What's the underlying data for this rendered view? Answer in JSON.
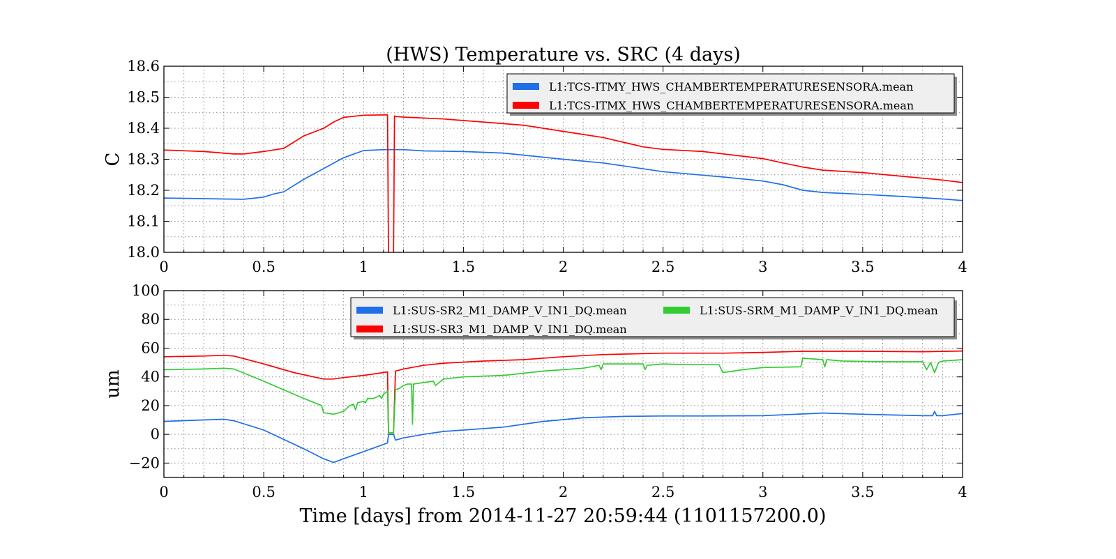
{
  "figure_xlabel": "Time [days] from 2014-11-27 20:59:44 (1101157200.0)",
  "colors": {
    "blue": "#1f6fe8",
    "red": "#ff0000",
    "green": "#33cc33"
  },
  "chart_data": [
    {
      "type": "line",
      "title": "(HWS) Temperature vs. SRC (4 days)",
      "xlabel": "",
      "ylabel": "C",
      "xlim": [
        0,
        4
      ],
      "ylim": [
        18.0,
        18.6
      ],
      "xticks": [
        0,
        0.5,
        1,
        1.5,
        2,
        2.5,
        3,
        3.5,
        4
      ],
      "xticklabels": [
        "0",
        "0.5",
        "1",
        "1.5",
        "2",
        "2.5",
        "3",
        "3.5",
        "4"
      ],
      "yticks": [
        18.0,
        18.1,
        18.2,
        18.3,
        18.4,
        18.5,
        18.6
      ],
      "yticklabels": [
        "18.0",
        "18.1",
        "18.2",
        "18.3",
        "18.4",
        "18.5",
        "18.6"
      ],
      "grid": true,
      "legend_position": "top-right",
      "series": [
        {
          "name": "L1:TCS-ITMY_HWS_CHAMBERTEMPERATURESENSORA.mean",
          "color": "#1f6fe8",
          "x": [
            0,
            0.3,
            0.4,
            0.5,
            0.55,
            0.6,
            0.7,
            0.8,
            0.9,
            1.0,
            1.1,
            1.2,
            1.3,
            1.5,
            1.7,
            2.0,
            2.2,
            2.5,
            2.8,
            3.0,
            3.1,
            3.2,
            3.3,
            3.5,
            3.7,
            3.9,
            4.0
          ],
          "y": [
            18.175,
            18.172,
            18.171,
            18.178,
            18.188,
            18.195,
            18.235,
            18.27,
            18.305,
            18.328,
            18.331,
            18.331,
            18.327,
            18.325,
            18.32,
            18.3,
            18.288,
            18.26,
            18.243,
            18.23,
            18.218,
            18.2,
            18.193,
            18.187,
            18.18,
            18.172,
            18.167
          ]
        },
        {
          "name": "L1:TCS-ITMX_HWS_CHAMBERTEMPERATURESENSORA.mean",
          "color": "#ff0000",
          "x": [
            0,
            0.2,
            0.35,
            0.4,
            0.5,
            0.6,
            0.65,
            0.7,
            0.8,
            0.85,
            0.9,
            1.0,
            1.1,
            1.12,
            1.125,
            1.15,
            1.155,
            1.16,
            1.2,
            1.4,
            1.6,
            1.8,
            2.0,
            2.1,
            2.2,
            2.3,
            2.4,
            2.5,
            2.7,
            2.9,
            3.0,
            3.1,
            3.2,
            3.3,
            3.5,
            3.7,
            3.9,
            4.0
          ],
          "y": [
            18.33,
            18.325,
            18.317,
            18.317,
            18.325,
            18.335,
            18.355,
            18.375,
            18.4,
            18.42,
            18.435,
            18.442,
            18.443,
            18.443,
            17.99,
            17.99,
            18.44,
            18.438,
            18.436,
            18.43,
            18.42,
            18.41,
            18.39,
            18.38,
            18.37,
            18.355,
            18.34,
            18.332,
            18.325,
            18.31,
            18.302,
            18.288,
            18.275,
            18.265,
            18.257,
            18.245,
            18.233,
            18.225
          ]
        }
      ]
    },
    {
      "type": "line",
      "title": "",
      "xlabel": "Time [days] from 2014-11-27 20:59:44 (1101157200.0)",
      "ylabel": "um",
      "xlim": [
        0,
        4
      ],
      "ylim": [
        -30,
        100
      ],
      "xticks": [
        0,
        0.5,
        1,
        1.5,
        2,
        2.5,
        3,
        3.5,
        4
      ],
      "xticklabels": [
        "0",
        "0.5",
        "1",
        "1.5",
        "2",
        "2.5",
        "3",
        "3.5",
        "4"
      ],
      "yticks": [
        -20,
        0,
        20,
        40,
        60,
        80,
        100
      ],
      "yticklabels": [
        "−20",
        "0",
        "20",
        "40",
        "60",
        "80",
        "100"
      ],
      "grid": true,
      "legend_position": "top-right",
      "series": [
        {
          "name": "L1:SUS-SR2_M1_DAMP_V_IN1_DQ.mean",
          "color": "#1f6fe8",
          "x": [
            0,
            0.2,
            0.3,
            0.35,
            0.5,
            0.7,
            0.8,
            0.85,
            0.9,
            1.0,
            1.1,
            1.12,
            1.125,
            1.15,
            1.16,
            1.2,
            1.3,
            1.4,
            1.5,
            1.7,
            1.9,
            2.1,
            2.3,
            2.5,
            2.7,
            3.0,
            3.3,
            3.5,
            3.8,
            3.85,
            3.86,
            3.87,
            3.9,
            4.0
          ],
          "y": [
            9,
            10,
            10.5,
            9.5,
            3,
            -10,
            -17,
            -19.5,
            -17,
            -12,
            -7,
            -6,
            0,
            0,
            -4,
            -2.5,
            0,
            2,
            3,
            5,
            9,
            11.5,
            12.5,
            12.8,
            12.8,
            13,
            14.8,
            14,
            13,
            13,
            16,
            13,
            13,
            14.5
          ]
        },
        {
          "name": "L1:SUS-SR3_M1_DAMP_V_IN1_DQ.mean",
          "color": "#ff0000",
          "x": [
            0,
            0.2,
            0.3,
            0.35,
            0.5,
            0.65,
            0.8,
            0.85,
            0.9,
            1.0,
            1.1,
            1.12,
            1.125,
            1.15,
            1.16,
            1.2,
            1.3,
            1.4,
            1.6,
            1.8,
            2.0,
            2.2,
            2.5,
            2.8,
            3.0,
            3.2,
            3.5,
            3.8,
            4.0
          ],
          "y": [
            54,
            54.5,
            55,
            54.5,
            49,
            43,
            38.5,
            38.5,
            39.5,
            41,
            43,
            43.5,
            1,
            1,
            44,
            45.5,
            48,
            49.5,
            51,
            52,
            54,
            55.5,
            56.5,
            56.5,
            57,
            57.8,
            57.8,
            57.5,
            58
          ]
        },
        {
          "name": "L1:SUS-SRM_M1_DAMP_V_IN1_DQ.mean",
          "color": "#33cc33",
          "x": [
            0,
            0.2,
            0.3,
            0.35,
            0.5,
            0.7,
            0.79,
            0.8,
            0.85,
            0.9,
            0.93,
            0.95,
            0.96,
            0.97,
            1.0,
            1.01,
            1.02,
            1.05,
            1.08,
            1.09,
            1.1,
            1.12,
            1.125,
            1.15,
            1.16,
            1.18,
            1.2,
            1.22,
            1.24,
            1.245,
            1.25,
            1.3,
            1.35,
            1.36,
            1.4,
            1.5,
            1.7,
            1.9,
            2.1,
            2.18,
            2.19,
            2.2,
            2.4,
            2.41,
            2.42,
            2.5,
            2.6,
            2.78,
            2.8,
            2.9,
            3.0,
            3.19,
            3.2,
            3.3,
            3.31,
            3.32,
            3.4,
            3.6,
            3.8,
            3.82,
            3.84,
            3.86,
            3.88,
            3.9,
            4.0
          ],
          "y": [
            45,
            45.5,
            46,
            45.5,
            37,
            25,
            20,
            15,
            14,
            16,
            20,
            21,
            17,
            22,
            23,
            22,
            25,
            25,
            27,
            25,
            28,
            30,
            1,
            1,
            31,
            32,
            34,
            35,
            35,
            7,
            35,
            36,
            37,
            34,
            38.5,
            40,
            41,
            44,
            46,
            48,
            45,
            49,
            49,
            45,
            48,
            49,
            48.5,
            48.5,
            43,
            45,
            46.5,
            47,
            53,
            52,
            47,
            52,
            51,
            50.5,
            50.5,
            45,
            50,
            43,
            50,
            51,
            52
          ]
        }
      ]
    }
  ]
}
